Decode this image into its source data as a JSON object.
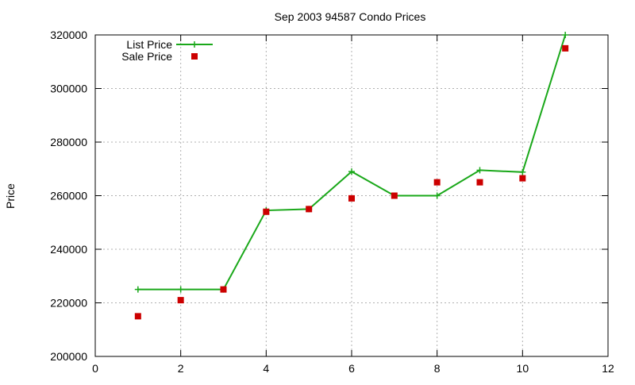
{
  "chart_data": {
    "type": "line",
    "title": "Sep 2003 94587 Condo Prices",
    "xlabel": "",
    "ylabel": "Price",
    "xlim": [
      0,
      12
    ],
    "ylim": [
      200000,
      320000
    ],
    "xticks": [
      0,
      2,
      4,
      6,
      8,
      10,
      12
    ],
    "yticks": [
      200000,
      220000,
      240000,
      260000,
      280000,
      300000,
      320000
    ],
    "grid": true,
    "legend_position": "top-left",
    "series": [
      {
        "name": "List Price",
        "style": "line-with-plus-markers",
        "color": "#1aa81a",
        "x": [
          1,
          2,
          3,
          4,
          5,
          6,
          7,
          8,
          9,
          10,
          11
        ],
        "y": [
          225000,
          225000,
          225000,
          254500,
          255000,
          269000,
          260000,
          260000,
          269500,
          268800,
          320000
        ]
      },
      {
        "name": "Sale Price",
        "style": "square-markers",
        "color": "#cc0000",
        "x": [
          1,
          2,
          3,
          4,
          5,
          6,
          7,
          8,
          9,
          10,
          11
        ],
        "y": [
          215000,
          221000,
          225000,
          254000,
          255000,
          259000,
          260000,
          265000,
          265000,
          266500,
          315000
        ]
      }
    ]
  }
}
